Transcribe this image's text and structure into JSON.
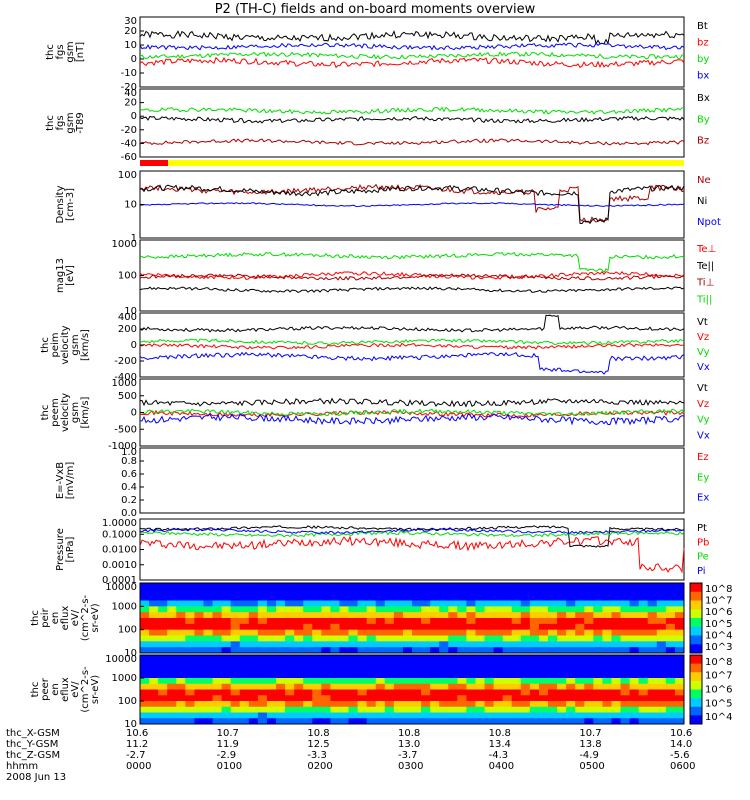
{
  "title": "P2 (TH-C) fields and on-board moments overview",
  "bar_colors": [
    "#ff0000",
    "#ffff00"
  ],
  "chart_data": [
    {
      "type": "line",
      "ylabel": [
        "thc",
        "fgs",
        "gsm",
        "[nT]"
      ],
      "yticks": [
        "30",
        "20",
        "10",
        "0",
        "-10",
        "-20"
      ],
      "ylim": [
        -22,
        32
      ],
      "series": [
        {
          "name": "Bt",
          "color": "#000000"
        },
        {
          "name": "bz",
          "color": "#ff0000"
        },
        {
          "name": "by",
          "color": "#00dd00"
        },
        {
          "name": "bx",
          "color": "#0000ff"
        }
      ]
    },
    {
      "type": "line",
      "ylabel": [
        "thc",
        "fgs",
        "gsm",
        "-T89"
      ],
      "yunit": "[nT]",
      "yticks": [
        "40",
        "20",
        "0",
        "-20",
        "-40",
        "-60"
      ],
      "ylim": [
        -70,
        42
      ],
      "series": [
        {
          "name": "Bx",
          "color": "#000000"
        },
        {
          "name": "By",
          "color": "#00dd00"
        },
        {
          "name": "Bz",
          "color": "#aa0000"
        }
      ]
    },
    {
      "type": "line",
      "ylabel": [
        "Density",
        "[cm-3]"
      ],
      "yticks": [
        "100",
        "10",
        "1"
      ],
      "log": true,
      "series": [
        {
          "name": "Ne",
          "color": "#aa0000"
        },
        {
          "name": "Ni",
          "color": "#000000"
        },
        {
          "name": "Npot",
          "color": "#0000ff"
        }
      ]
    },
    {
      "type": "line",
      "ylabel": [
        "mag13",
        "[eV]"
      ],
      "yticks": [
        "1000",
        "100",
        "10"
      ],
      "log": true,
      "series": [
        {
          "name": "Te⊥",
          "color": "#ff0000"
        },
        {
          "name": "Te||",
          "color": "#000000"
        },
        {
          "name": "Ti⊥",
          "color": "#aa0000"
        },
        {
          "name": "Ti||",
          "color": "#00dd00"
        }
      ]
    },
    {
      "type": "line",
      "ylabel": [
        "thc",
        "peim",
        "velocity",
        "gsm",
        "[km/s]"
      ],
      "yticks": [
        "400",
        "200",
        "0",
        "-200",
        "-400"
      ],
      "ylim": [
        -420,
        420
      ],
      "series": [
        {
          "name": "Vt",
          "color": "#000000"
        },
        {
          "name": "Vz",
          "color": "#ff0000"
        },
        {
          "name": "Vy",
          "color": "#00dd00"
        },
        {
          "name": "Vx",
          "color": "#0000ff"
        }
      ]
    },
    {
      "type": "line",
      "ylabel": [
        "thc",
        "peem",
        "velocity",
        "gsm",
        "[km/s]"
      ],
      "yticks": [
        "1000",
        "500",
        "0",
        "-500",
        "-1000"
      ],
      "ylim": [
        -1050,
        1050
      ],
      "series": [
        {
          "name": "Vt",
          "color": "#000000"
        },
        {
          "name": "Vz",
          "color": "#ff0000"
        },
        {
          "name": "Vy",
          "color": "#00dd00"
        },
        {
          "name": "Vx",
          "color": "#0000ff"
        }
      ]
    },
    {
      "type": "line",
      "ylabel": [
        "E=-VxB",
        "[mV/m]"
      ],
      "yticks": [
        "1.0",
        "0.8",
        "0.6",
        "0.4",
        "0.2",
        "0.0"
      ],
      "ylim": [
        0,
        1
      ],
      "series": [
        {
          "name": "Ez",
          "color": "#ff0000"
        },
        {
          "name": "Ey",
          "color": "#00dd00"
        },
        {
          "name": "Ex",
          "color": "#0000ff"
        }
      ]
    },
    {
      "type": "line",
      "ylabel": [
        "Pressure",
        "[nPa]"
      ],
      "yticks": [
        "1.0000",
        "0.1000",
        "0.0100",
        "0.0010",
        "0.0001"
      ],
      "log": true,
      "series": [
        {
          "name": "Pt",
          "color": "#000000"
        },
        {
          "name": "Pb",
          "color": "#ff0000"
        },
        {
          "name": "Pe",
          "color": "#00dd00"
        },
        {
          "name": "Pi",
          "color": "#0000ff"
        }
      ]
    },
    {
      "type": "heatmap",
      "ylabel": [
        "thc",
        "peir",
        "en",
        "eflux",
        "eV/",
        "(cm^2-s-",
        "sr-eV)"
      ],
      "yticks": [
        "10000",
        "1000",
        "100",
        "10"
      ],
      "log": true,
      "colorbar": [
        "10^8",
        "10^7",
        "10^6",
        "10^5",
        "10^4",
        "10^3"
      ]
    },
    {
      "type": "heatmap",
      "ylabel": [
        "thc",
        "peer",
        "en",
        "eflux",
        "eV/",
        "(cm^2-s-",
        "sr-eV)"
      ],
      "yticks": [
        "10000",
        "1000",
        "100",
        "10"
      ],
      "log": true,
      "colorbar": [
        "10^8",
        "10^7",
        "10^6",
        "10^5",
        "10^4"
      ]
    }
  ],
  "footer": {
    "rows": [
      {
        "label": "thc_X-GSM",
        "values": [
          "10.6",
          "10.7",
          "10.8",
          "10.8",
          "10.8",
          "10.7",
          "10.6"
        ]
      },
      {
        "label": "thc_Y-GSM",
        "values": [
          "11.2",
          "11.9",
          "12.5",
          "13.0",
          "13.4",
          "13.8",
          "14.0"
        ]
      },
      {
        "label": "thc_Z-GSM",
        "values": [
          "-2.7",
          "-2.9",
          "-3.3",
          "-3.7",
          "-4.3",
          "-4.9",
          "-5.6"
        ]
      },
      {
        "label": "hhmm",
        "values": [
          "0000",
          "0100",
          "0200",
          "0300",
          "0400",
          "0500",
          "0600"
        ]
      }
    ],
    "date": "2008 Jun 13"
  }
}
